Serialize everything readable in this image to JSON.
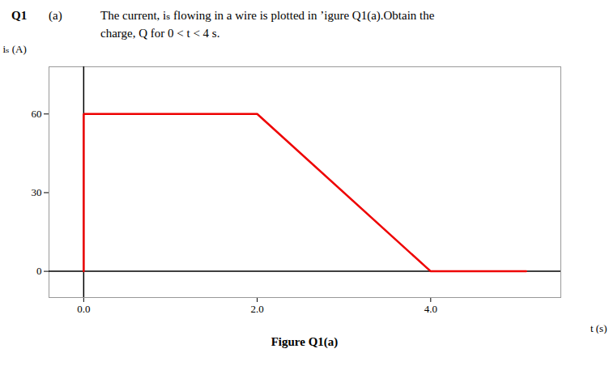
{
  "chart_data": {
    "type": "line",
    "title": "Q1",
    "subtitle": "(a)",
    "annotations": [
      "The current, iₛ flowing in a wire is plotted in ’igure Q1(a).Obtain the",
      "charge, Q for 0 < t < 4 s."
    ],
    "caption": "Figure Q1(a)",
    "x_label": "t (s)",
    "y_label": "iₛ (A)",
    "x": [
      0,
      0,
      2,
      4,
      5.1
    ],
    "values": [
      0,
      60,
      60,
      0,
      0
    ],
    "color": "#ee0000",
    "xlim": [
      -0.4,
      5.5
    ],
    "ylim": [
      -10,
      78
    ],
    "xticks": [
      0,
      2,
      4
    ],
    "yticks": [
      0,
      30,
      60
    ],
    "grid": false
  }
}
